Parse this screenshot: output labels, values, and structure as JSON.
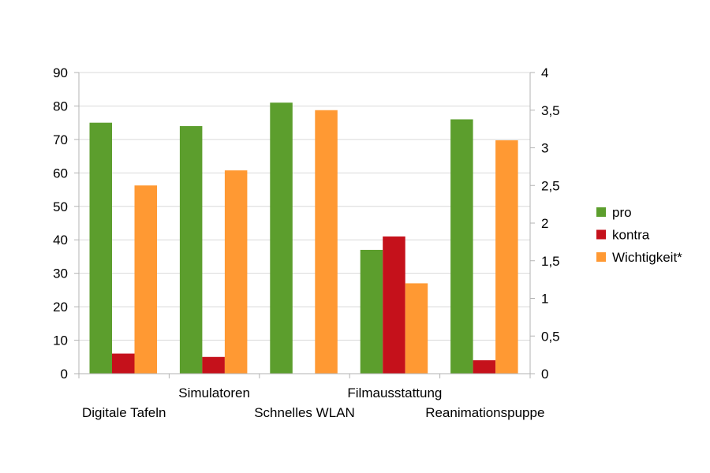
{
  "chart_data": {
    "type": "bar",
    "categories": [
      "Digitale Tafeln",
      "Simulatoren",
      "Schnelles WLAN",
      "Filmausstattung",
      "Reanimationspuppe"
    ],
    "series": [
      {
        "name": "pro",
        "axis": "left",
        "color": "#5c9e2d",
        "values": [
          75,
          74,
          81,
          37,
          76
        ]
      },
      {
        "name": "kontra",
        "axis": "left",
        "color": "#c5111b",
        "values": [
          6,
          5,
          0,
          41,
          4
        ]
      },
      {
        "name": "Wichtigkeit*",
        "axis": "right",
        "color": "#ff9933",
        "values": [
          2.5,
          2.7,
          3.5,
          1.2,
          3.1
        ]
      }
    ],
    "left_axis": {
      "min": 0,
      "max": 90,
      "step": 10,
      "tick_labels": [
        "0",
        "10",
        "20",
        "30",
        "40",
        "50",
        "60",
        "70",
        "80",
        "90"
      ]
    },
    "right_axis": {
      "min": 0,
      "max": 4,
      "step": 0.5,
      "tick_labels": [
        "0",
        "0,5",
        "1",
        "1,5",
        "2",
        "2,5",
        "3",
        "3,5",
        "4"
      ]
    },
    "grid": true,
    "legend_position": "right"
  }
}
